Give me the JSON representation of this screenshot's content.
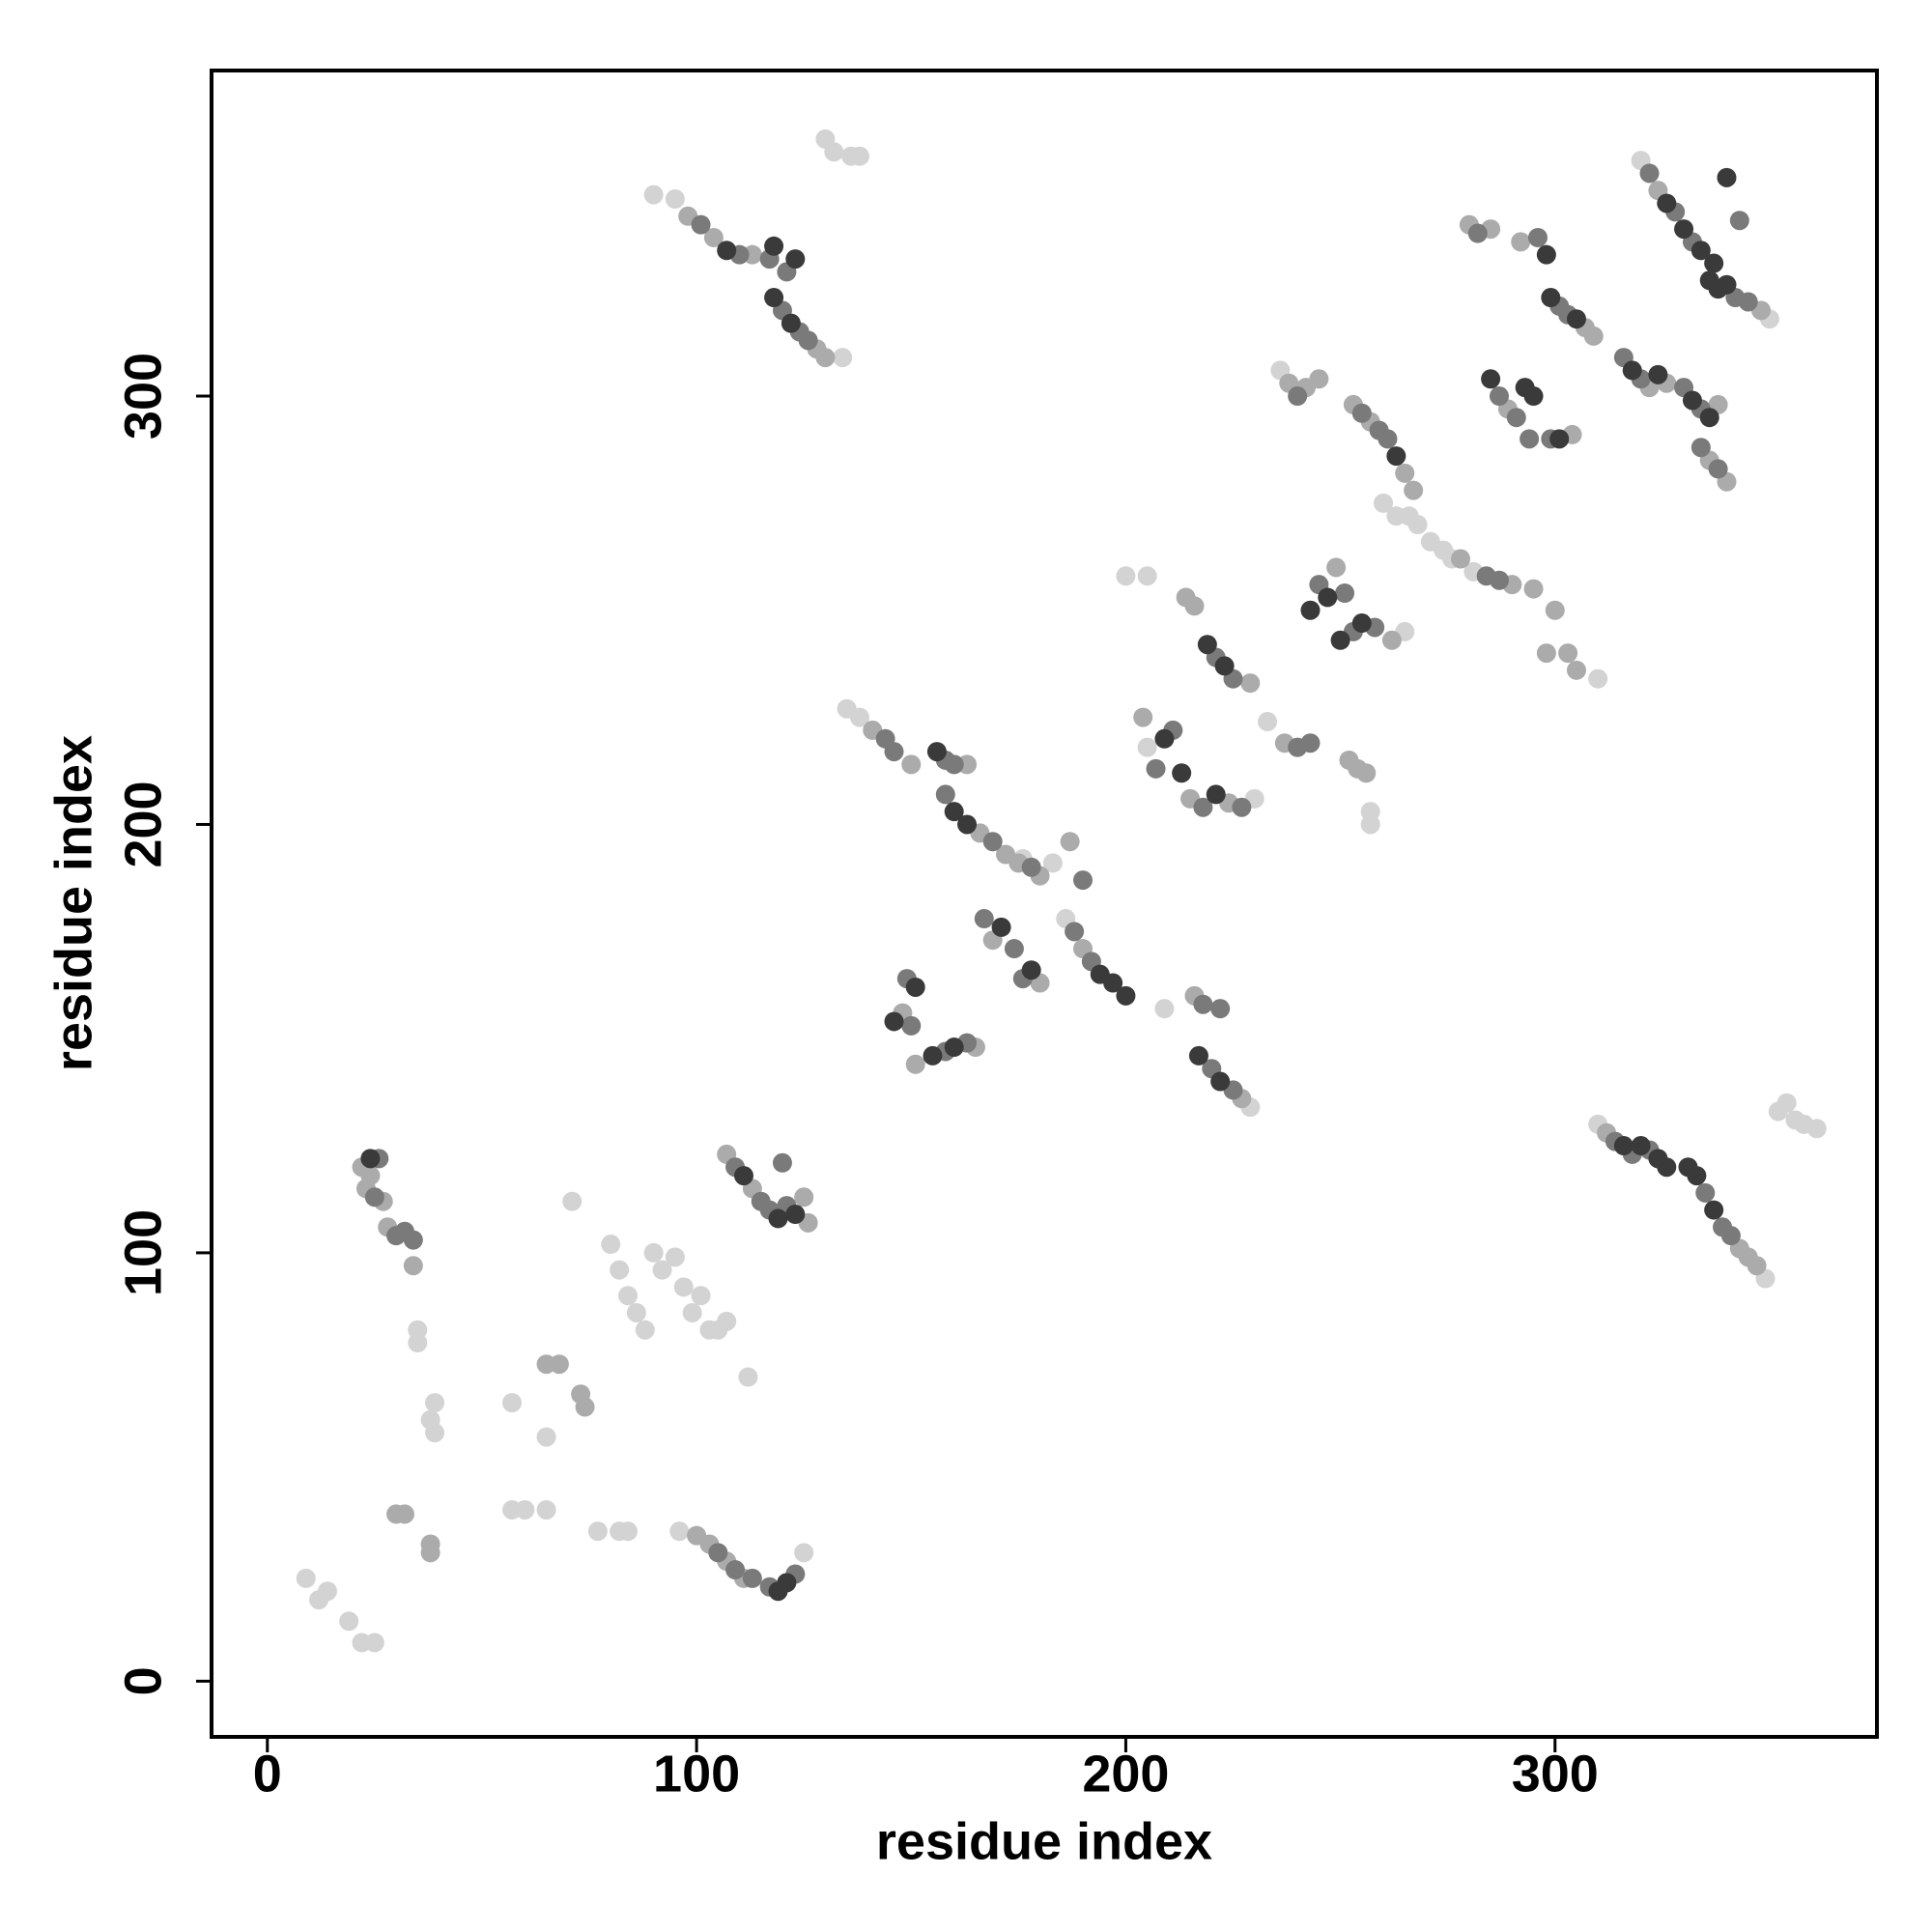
{
  "chart_data": {
    "type": "scatter",
    "xlabel": "residue index",
    "ylabel": "residue index",
    "xlim": [
      -13,
      375
    ],
    "ylim": [
      -13,
      376
    ],
    "xticks": [
      0,
      100,
      200,
      300
    ],
    "yticks": [
      0,
      100,
      200,
      300
    ],
    "series": [
      {
        "color": "#d3d3d3",
        "x": [
          9,
          12,
          14,
          19,
          22,
          25,
          35,
          35,
          39,
          39,
          38,
          57,
          60,
          65,
          57,
          65,
          71,
          80,
          82,
          84,
          86,
          88,
          90,
          92,
          95,
          97,
          99,
          101,
          103,
          105,
          107,
          112,
          77,
          82,
          84,
          96,
          125,
          90,
          95,
          130,
          132,
          136,
          138,
          134,
          135,
          138,
          183,
          176,
          186,
          209,
          229,
          200,
          205,
          257,
          257,
          205,
          233,
          260,
          263,
          266,
          268,
          271,
          274,
          276,
          236,
          310,
          352,
          354,
          356,
          358,
          361,
          350,
          320,
          310,
          349,
          265,
          281,
          230
        ],
        "y": [
          24,
          19,
          21,
          14,
          9,
          9,
          82,
          79,
          65,
          58,
          61,
          40,
          40,
          40,
          65,
          57,
          112,
          102,
          96,
          90,
          86,
          82,
          100,
          96,
          99,
          92,
          86,
          90,
          82,
          82,
          84,
          71,
          35,
          35,
          35,
          35,
          30,
          347,
          346,
          360,
          357,
          356,
          356,
          309,
          227,
          225,
          191,
          192,
          178,
          157,
          134,
          258,
          258,
          203,
          200,
          218,
          224,
          275,
          272,
          272,
          270,
          266,
          264,
          262,
          306,
          234,
          133,
          135,
          131,
          130,
          129,
          318,
          355,
          130,
          94,
          245,
          259,
          206
        ]
      },
      {
        "color": "#ababab",
        "x": [
          22,
          24,
          23,
          27,
          28,
          34,
          30,
          32,
          38,
          38,
          65,
          68,
          73,
          74,
          100,
          103,
          107,
          111,
          107,
          113,
          126,
          125,
          98,
          104,
          113,
          128,
          130,
          141,
          150,
          163,
          166,
          172,
          175,
          180,
          187,
          169,
          180,
          190,
          148,
          151,
          165,
          216,
          227,
          204,
          215,
          224,
          229,
          214,
          216,
          237,
          252,
          254,
          256,
          249,
          262,
          253,
          257,
          265,
          267,
          238,
          242,
          245,
          278,
          290,
          295,
          300,
          298,
          303,
          305,
          280,
          285,
          292,
          307,
          309,
          289,
          304,
          322,
          326,
          324,
          348,
          336,
          340,
          338,
          312,
          343,
          347,
          345
        ],
        "y": [
          120,
          118,
          115,
          112,
          106,
          97,
          39,
          39,
          32,
          30,
          74,
          74,
          67,
          64,
          34,
          32,
          28,
          24,
          123,
          115,
          107,
          113,
          342,
          337,
          333,
          311,
          309,
          222,
          214,
          214,
          198,
          193,
          191,
          188,
          196,
          173,
          163,
          171,
          156,
          144,
          148,
          160,
          136,
          225,
          206,
          205,
          233,
          253,
          251,
          219,
          215,
          213,
          212,
          260,
          243,
          298,
          294,
          282,
          278,
          303,
          302,
          304,
          262,
          256,
          255,
          250,
          240,
          240,
          236,
          340,
          339,
          336,
          316,
          314,
          297,
          291,
          302,
          303,
          348,
          320,
          285,
          280,
          298,
          128,
          101,
          97,
          99
        ]
      },
      {
        "color": "#7a7a7a",
        "x": [
          26,
          25,
          30,
          32,
          34,
          105,
          109,
          113,
          117,
          123,
          109,
          115,
          117,
          121,
          120,
          101,
          110,
          117,
          121,
          120,
          124,
          126,
          144,
          146,
          158,
          160,
          158,
          169,
          178,
          190,
          167,
          174,
          176,
          188,
          192,
          149,
          150,
          158,
          163,
          218,
          222,
          220,
          225,
          207,
          211,
          218,
          227,
          221,
          225,
          240,
          243,
          245,
          251,
          253,
          258,
          255,
          259,
          261,
          240,
          284,
          287,
          301,
          303,
          282,
          296,
          287,
          291,
          294,
          299,
          316,
          320,
          322,
          328,
          332,
          342,
          345,
          330,
          334,
          334,
          338,
          314,
          318,
          322,
          335,
          339,
          341,
          343
        ],
        "y": [
          122,
          113,
          104,
          105,
          103,
          30,
          26,
          24,
          22,
          25,
          120,
          112,
          110,
          111,
          121,
          340,
          333,
          332,
          329,
          320,
          315,
          313,
          220,
          217,
          215,
          214,
          207,
          196,
          190,
          187,
          178,
          171,
          164,
          175,
          168,
          164,
          153,
          147,
          149,
          158,
          157,
          143,
          138,
          213,
          222,
          204,
          204,
          239,
          234,
          218,
          219,
          256,
          254,
          245,
          246,
          296,
          292,
          290,
          300,
          258,
          257,
          321,
          319,
          338,
          337,
          300,
          295,
          290,
          290,
          309,
          304,
          352,
          343,
          336,
          323,
          322,
          302,
          297,
          288,
          283,
          126,
          123,
          124,
          114,
          106,
          104,
          341
        ]
      },
      {
        "color": "#3a3a3a",
        "x": [
          24,
          119,
          121,
          111,
          119,
          123,
          107,
          118,
          123,
          118,
          122,
          156,
          160,
          163,
          171,
          178,
          194,
          197,
          200,
          146,
          151,
          155,
          160,
          217,
          222,
          209,
          213,
          221,
          219,
          223,
          243,
          247,
          250,
          255,
          263,
          299,
          305,
          298,
          285,
          293,
          295,
          301,
          318,
          324,
          326,
          330,
          334,
          337,
          336,
          338,
          340,
          340,
          332,
          336,
          316,
          320,
          324,
          326,
          331,
          333,
          337
        ],
        "y": [
          122,
          21,
          23,
          118,
          108,
          109,
          334,
          335,
          332,
          323,
          317,
          217,
          203,
          200,
          176,
          166,
          165,
          163,
          160,
          154,
          162,
          146,
          148,
          146,
          140,
          220,
          212,
          207,
          242,
          237,
          250,
          253,
          243,
          247,
          286,
          323,
          318,
          333,
          304,
          302,
          300,
          290,
          306,
          305,
          345,
          339,
          334,
          331,
          327,
          325,
          326,
          351,
          299,
          295,
          125,
          125,
          122,
          120,
          120,
          118,
          110
        ]
      }
    ]
  }
}
